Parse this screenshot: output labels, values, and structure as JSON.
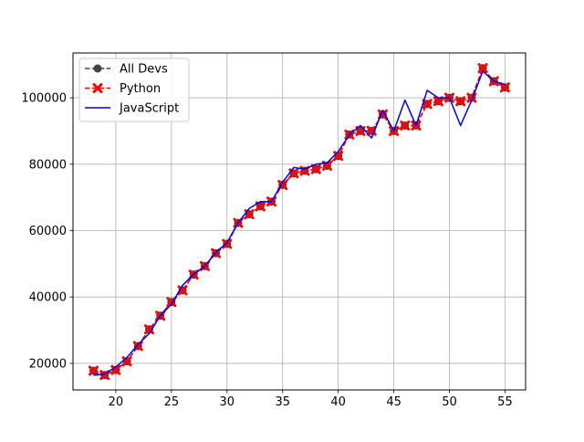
{
  "chart_data": {
    "type": "line",
    "title": "",
    "xlabel": "",
    "ylabel": "",
    "xlim": [
      16.15,
      56.85
    ],
    "ylim": [
      12000,
      113500
    ],
    "grid": true,
    "legend_position": "top-left",
    "x_ticks": [
      20,
      25,
      30,
      35,
      40,
      45,
      50,
      55
    ],
    "y_ticks": [
      20000,
      40000,
      60000,
      80000,
      100000
    ],
    "x": [
      18,
      19,
      20,
      21,
      22,
      23,
      24,
      25,
      26,
      27,
      28,
      29,
      30,
      31,
      32,
      33,
      34,
      35,
      36,
      37,
      38,
      39,
      40,
      41,
      42,
      43,
      44,
      45,
      46,
      47,
      48,
      49,
      50,
      51,
      52,
      53,
      54,
      55
    ],
    "series": [
      {
        "name": "All Devs",
        "color": "#444444",
        "line_style": "dashed",
        "marker": "circle",
        "values": [
          17784,
          16500,
          18012,
          20628,
          25206,
          30252,
          34368,
          38496,
          42000,
          46752,
          49320,
          53200,
          56000,
          62316,
          64928,
          67317,
          68748,
          73752,
          77232,
          78000,
          78508,
          79536,
          82488,
          88935,
          90000,
          90056,
          95000,
          90000,
          91633,
          91660,
          98150,
          98964,
          100000,
          98988,
          100000,
          108923,
          105000,
          103117
        ]
      },
      {
        "name": "Python",
        "color": "#ff0000",
        "line_style": "dashed",
        "marker": "x",
        "values": [
          17784,
          16500,
          18012,
          20628,
          25206,
          30252,
          34368,
          38496,
          42000,
          46752,
          49320,
          53200,
          56000,
          62316,
          64928,
          67317,
          68748,
          73752,
          77232,
          78000,
          78508,
          79536,
          82488,
          88935,
          90000,
          90056,
          95000,
          90000,
          91633,
          91660,
          98150,
          98964,
          100000,
          98988,
          100000,
          108923,
          105000,
          103117
        ]
      },
      {
        "name": "JavaScript",
        "color": "#0000ee",
        "line_style": "solid",
        "marker": "none",
        "values": [
          16446,
          16791,
          18942,
          21780,
          25704,
          29000,
          34372,
          37810,
          43515,
          46823,
          49293,
          53437,
          56373,
          62375,
          66674,
          68745,
          68746,
          74583,
          79000,
          78508,
          79996,
          80403,
          83820,
          88833,
          91660,
          87892,
          96243,
          90000,
          99313,
          91660,
          102264,
          100000,
          100000,
          91660,
          99240,
          108000,
          105000,
          104000
        ]
      }
    ]
  }
}
